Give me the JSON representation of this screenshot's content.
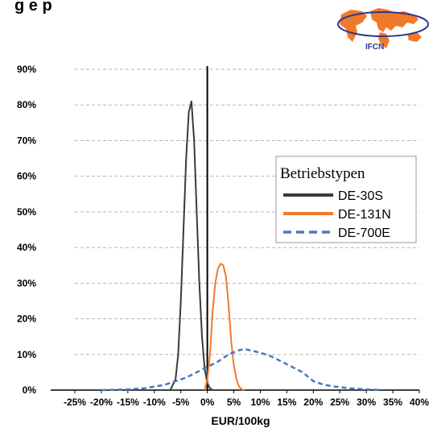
{
  "header": {
    "title": "g e p"
  },
  "logo": {
    "text": "IFCN",
    "color": "#f07a2b",
    "ring_color": "#2b3a8f"
  },
  "chart_data": {
    "type": "line",
    "title": "",
    "xlabel": "EUR/100kg",
    "ylabel": "",
    "xlim": [
      -25,
      40
    ],
    "ylim": [
      0,
      90
    ],
    "x_ticks": [
      "-25%",
      "-20%",
      "-15%",
      "-10%",
      "-5%",
      "0%",
      "5%",
      "10%",
      "15%",
      "20%",
      "25%",
      "30%",
      "35%",
      "40%"
    ],
    "y_ticks": [
      "0%",
      "10%",
      "20%",
      "30%",
      "40%",
      "50%",
      "60%",
      "70%",
      "80%",
      "90%"
    ],
    "grid": "horizontal-dashed",
    "legend": {
      "title": "Betriebstypen",
      "position": "right"
    },
    "series": [
      {
        "name": "DE-30S",
        "color": "#3a3a3a",
        "style": "solid",
        "x": [
          -7,
          -6,
          -5.5,
          -5,
          -4.5,
          -4,
          -3.5,
          -3,
          -2.5,
          -2,
          -1.5,
          -1,
          -0.5,
          0,
          0.5,
          1
        ],
        "y": [
          0,
          3,
          10,
          25,
          45,
          65,
          78,
          81,
          70,
          50,
          30,
          15,
          6,
          2,
          0.5,
          0
        ]
      },
      {
        "name": "DE-131N",
        "color": "#f07a2b",
        "style": "solid",
        "x": [
          -0.5,
          0,
          0.5,
          1,
          1.5,
          2,
          2.5,
          3,
          3.5,
          4,
          4.5,
          5,
          5.5,
          6,
          6.5,
          7
        ],
        "y": [
          0,
          3,
          10,
          22,
          30,
          34,
          35.5,
          35,
          32,
          24,
          14,
          7,
          3,
          1,
          0.2,
          0
        ]
      },
      {
        "name": "DE-700E",
        "color": "#4a78c0",
        "style": "dashed",
        "x": [
          -20,
          -15,
          -12,
          -10,
          -8,
          -6,
          -4,
          -2,
          0,
          2,
          4,
          6,
          7,
          8,
          10,
          12,
          14,
          16,
          18,
          20,
          22,
          24,
          27,
          30,
          33
        ],
        "y": [
          0,
          0.2,
          0.5,
          1,
          1.5,
          2.5,
          3.5,
          5,
          6.5,
          8,
          10,
          11.2,
          11.5,
          11.2,
          10.5,
          9.5,
          8,
          6.5,
          5,
          2.5,
          1.5,
          1,
          0.5,
          0.2,
          0
        ]
      }
    ]
  }
}
